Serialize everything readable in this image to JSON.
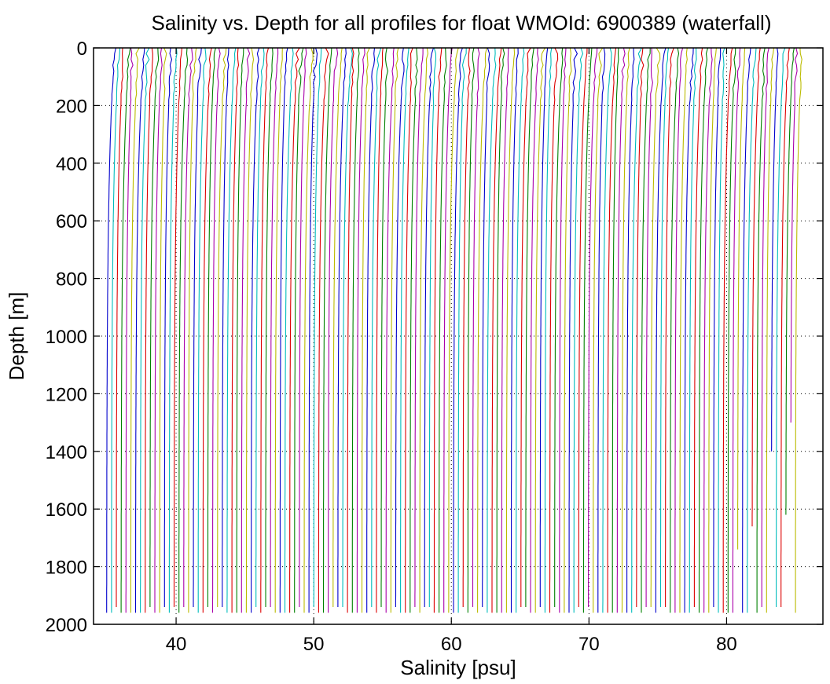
{
  "chart_data": {
    "type": "line",
    "title": "Salinity vs. Depth for all profiles for float WMOId: 6900389 (waterfall)",
    "xlabel": "Salinity [psu]",
    "ylabel": "Depth [m]",
    "xlim": [
      34,
      87
    ],
    "ylim": [
      2000,
      0
    ],
    "y_inverted": true,
    "x_ticks": [
      40,
      50,
      60,
      70,
      80
    ],
    "y_ticks": [
      0,
      200,
      400,
      600,
      800,
      1000,
      1200,
      1400,
      1600,
      1800,
      2000
    ],
    "grid": true,
    "grid_style": "dotted",
    "profile_count": 144,
    "first_profile_deep_salinity": 34.95,
    "waterfall_offset_per_profile": 0.35,
    "surface_salinity_offset": 0.55,
    "max_depth": 1975,
    "color_cycle": [
      "#0000cc",
      "#00bcbc",
      "#dd0000",
      "#008000",
      "#aa00aa",
      "#bbbb00"
    ]
  }
}
